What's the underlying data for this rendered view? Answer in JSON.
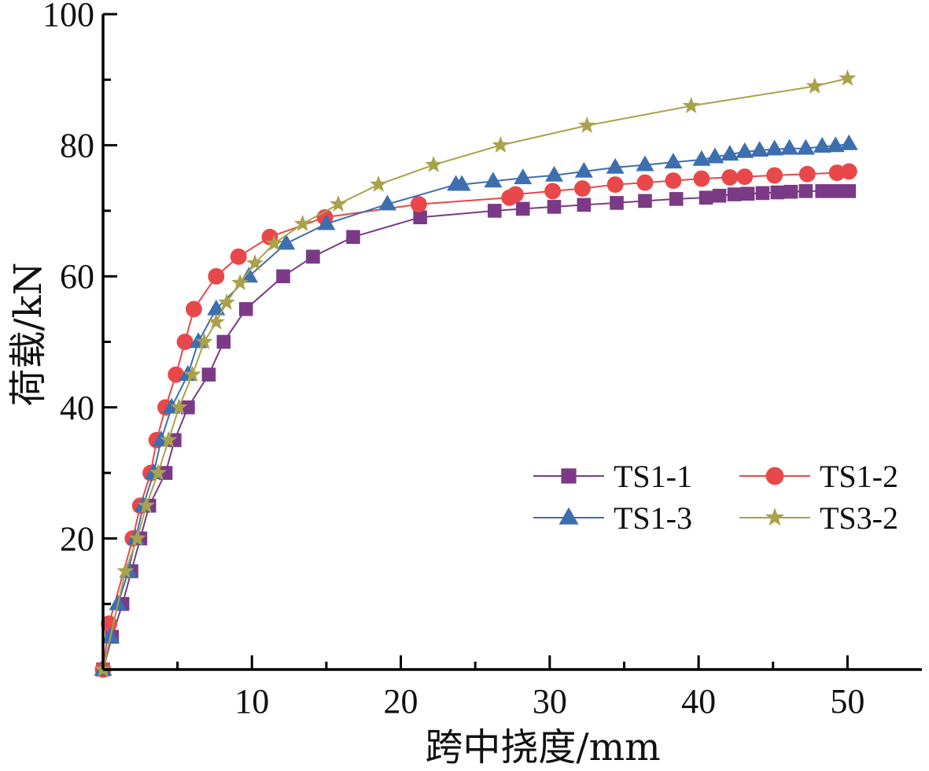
{
  "chart_data": {
    "type": "line",
    "title": "",
    "xlabel": "跨中挠度/mm",
    "ylabel": "荷载/kN",
    "xlim": [
      0,
      55
    ],
    "ylim": [
      0,
      100
    ],
    "x_ticks": [
      10,
      20,
      30,
      40,
      50
    ],
    "y_ticks": [
      20,
      40,
      60,
      80,
      100
    ],
    "grid": false,
    "legend_position": "center-right",
    "series": [
      {
        "name": "TS1-1",
        "color": "#7b3a86",
        "marker": "square",
        "points": [
          [
            0,
            0
          ],
          [
            0.6,
            5
          ],
          [
            1.3,
            10
          ],
          [
            1.9,
            15
          ],
          [
            2.5,
            20
          ],
          [
            3.1,
            25
          ],
          [
            4.2,
            30
          ],
          [
            4.8,
            35
          ],
          [
            5.7,
            40
          ],
          [
            7.1,
            45
          ],
          [
            8.1,
            50
          ],
          [
            9.6,
            55
          ],
          [
            12.1,
            60
          ],
          [
            14.1,
            63
          ],
          [
            16.8,
            66
          ],
          [
            21.3,
            69
          ],
          [
            26.3,
            70
          ],
          [
            28.2,
            70.3
          ],
          [
            30.3,
            70.6
          ],
          [
            32.3,
            70.9
          ],
          [
            34.5,
            71.2
          ],
          [
            36.4,
            71.5
          ],
          [
            38.5,
            71.8
          ],
          [
            40.5,
            72
          ],
          [
            41.4,
            72.3
          ],
          [
            42.4,
            72.5
          ],
          [
            43.3,
            72.6
          ],
          [
            44.3,
            72.7
          ],
          [
            45.3,
            72.8
          ],
          [
            46.2,
            72.9
          ],
          [
            47.2,
            73
          ],
          [
            48.3,
            73
          ],
          [
            49.2,
            73
          ],
          [
            50.1,
            73
          ]
        ]
      },
      {
        "name": "TS1-2",
        "color": "#e8484a",
        "marker": "circle",
        "points": [
          [
            0,
            0
          ],
          [
            0.4,
            7
          ],
          [
            2,
            20
          ],
          [
            2.5,
            25
          ],
          [
            3.2,
            30
          ],
          [
            3.6,
            35
          ],
          [
            4.2,
            40
          ],
          [
            4.9,
            45
          ],
          [
            5.5,
            50
          ],
          [
            6.1,
            55
          ],
          [
            7.6,
            60
          ],
          [
            9.1,
            63
          ],
          [
            11.2,
            66
          ],
          [
            14.9,
            69
          ],
          [
            21.2,
            71
          ],
          [
            27.3,
            72
          ],
          [
            27.7,
            72.5
          ],
          [
            30.2,
            73
          ],
          [
            32.2,
            73.4
          ],
          [
            34.4,
            74
          ],
          [
            36.4,
            74.3
          ],
          [
            38.3,
            74.6
          ],
          [
            40.2,
            74.9
          ],
          [
            42.1,
            75.1
          ],
          [
            43.1,
            75.2
          ],
          [
            45.1,
            75.4
          ],
          [
            47.3,
            75.6
          ],
          [
            49.3,
            75.8
          ],
          [
            50.1,
            76
          ]
        ]
      },
      {
        "name": "TS1-3",
        "color": "#3d6fae",
        "marker": "triangle",
        "points": [
          [
            0,
            0
          ],
          [
            0.5,
            5
          ],
          [
            1,
            10
          ],
          [
            1.7,
            15
          ],
          [
            2.2,
            20
          ],
          [
            2.7,
            25
          ],
          [
            3.4,
            30
          ],
          [
            3.9,
            35
          ],
          [
            4.6,
            40
          ],
          [
            5.7,
            45
          ],
          [
            6.4,
            50
          ],
          [
            7.6,
            55
          ],
          [
            9.8,
            60
          ],
          [
            12.3,
            65
          ],
          [
            15,
            68
          ],
          [
            19.1,
            71
          ],
          [
            23.7,
            74
          ],
          [
            24.1,
            74
          ],
          [
            26.2,
            74.5
          ],
          [
            28.2,
            75
          ],
          [
            30.3,
            75.4
          ],
          [
            32.3,
            76
          ],
          [
            34.4,
            76.6
          ],
          [
            36.4,
            77
          ],
          [
            38.3,
            77.4
          ],
          [
            40.2,
            77.8
          ],
          [
            41.1,
            78.2
          ],
          [
            42.1,
            78.6
          ],
          [
            43.1,
            79
          ],
          [
            44.1,
            79.2
          ],
          [
            45.1,
            79.4
          ],
          [
            46.1,
            79.5
          ],
          [
            47.2,
            79.5
          ],
          [
            48.3,
            79.8
          ],
          [
            49.2,
            79.9
          ],
          [
            50.1,
            80.2
          ]
        ]
      },
      {
        "name": "TS3-2",
        "color": "#aaa24a",
        "marker": "star",
        "points": [
          [
            0,
            0
          ],
          [
            1.5,
            15
          ],
          [
            2.3,
            20
          ],
          [
            2.9,
            25
          ],
          [
            3.7,
            30
          ],
          [
            4.4,
            35
          ],
          [
            5.1,
            40
          ],
          [
            6,
            45
          ],
          [
            6.8,
            50
          ],
          [
            7.6,
            53
          ],
          [
            8.3,
            56
          ],
          [
            9.2,
            59
          ],
          [
            10.2,
            62
          ],
          [
            11.5,
            65
          ],
          [
            13.4,
            68
          ],
          [
            15.8,
            71
          ],
          [
            18.5,
            74
          ],
          [
            22.2,
            77
          ],
          [
            26.7,
            80
          ],
          [
            32.5,
            83
          ],
          [
            39.5,
            86
          ],
          [
            47.8,
            89
          ],
          [
            50,
            90.2
          ]
        ]
      }
    ]
  }
}
